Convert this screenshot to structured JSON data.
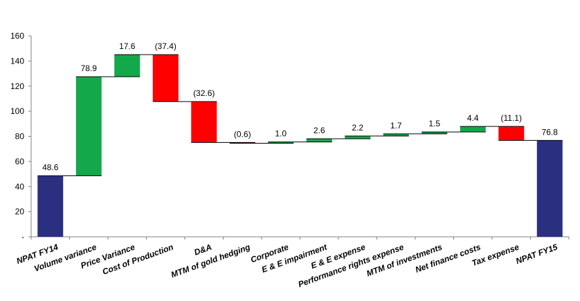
{
  "chart_data": {
    "type": "waterfall",
    "categories": [
      "NPAT FY14",
      "Volume variance",
      "Price Variance",
      "Cost of Production",
      "D&A",
      "MTM of gold hedging",
      "Corporate",
      "E & E impairment",
      "E & E expense",
      "Performance rights expense",
      "MTM of investments",
      "Net finance costs",
      "Tax expense",
      "NPAT FY15"
    ],
    "values": [
      48.6,
      78.9,
      17.6,
      -37.4,
      -32.6,
      -0.6,
      1.0,
      2.6,
      2.2,
      1.7,
      1.5,
      4.4,
      -11.1,
      76.8
    ],
    "labels": [
      "48.6",
      "78.9",
      "17.6",
      "(37.4)",
      "(32.6)",
      "(0.6)",
      "1.0",
      "2.6",
      "2.2",
      "1.7",
      "1.5",
      "4.4",
      "(11.1)",
      "76.8"
    ],
    "kinds": [
      "total",
      "delta",
      "delta",
      "delta",
      "delta",
      "delta",
      "delta",
      "delta",
      "delta",
      "delta",
      "delta",
      "delta",
      "delta",
      "total"
    ],
    "ylim": [
      0,
      160
    ],
    "yticks": [
      0,
      20,
      40,
      60,
      80,
      100,
      120,
      140,
      160
    ],
    "ytick_labels": [
      "-",
      "20",
      "40",
      "60",
      "80",
      "100",
      "120",
      "140",
      "160"
    ],
    "grid": false,
    "title": "",
    "xlabel": "",
    "ylabel": "",
    "colors": {
      "total": "#2a2f7f",
      "increase": "#13a84a",
      "decrease": "#ff0000",
      "axis": "#808080"
    }
  }
}
